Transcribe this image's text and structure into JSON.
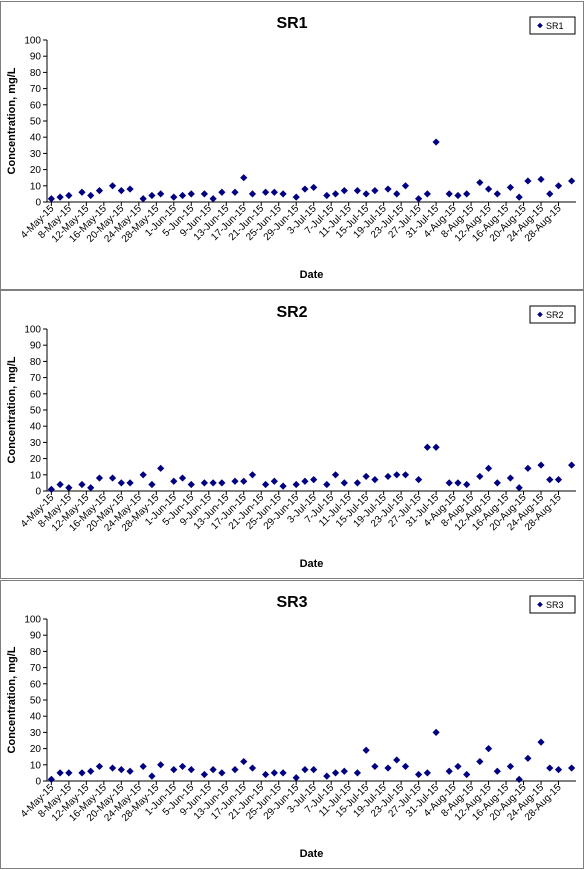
{
  "chart_data": [
    {
      "type": "scatter",
      "title": "SR1",
      "xlabel": "Date",
      "ylabel": "Concentration, mg/L",
      "ylim": [
        0,
        100
      ],
      "yticks": [
        0,
        10,
        20,
        30,
        40,
        50,
        60,
        70,
        80,
        90,
        100
      ],
      "xtick_labels": [
        "4-May-15",
        "8-May-15",
        "12-May-15",
        "16-May-15",
        "20-May-15",
        "24-May-15",
        "28-May-15",
        "1-Jun-15",
        "5-Jun-15",
        "9-Jun-15",
        "13-Jun-15",
        "17-Jun-15",
        "21-Jun-15",
        "25-Jun-15",
        "29-Jun-15",
        "3-Jul-15",
        "7-Jul-15",
        "11-Jul-15",
        "15-Jul-15",
        "19-Jul-15",
        "23-Jul-15",
        "27-Jul-15",
        "31-Jul-15",
        "4-Aug-15",
        "8-Aug-15",
        "12-Aug-15",
        "16-Aug-15",
        "20-Aug-15",
        "24-Aug-15",
        "28-Aug-15"
      ],
      "grid": false,
      "legend_position": "top-right",
      "series": [
        {
          "name": "SR1",
          "color": "#000080",
          "marker": "diamond",
          "points": [
            [
              "2015-05-04",
              2
            ],
            [
              "2015-05-06",
              3
            ],
            [
              "2015-05-08",
              4
            ],
            [
              "2015-05-11",
              6
            ],
            [
              "2015-05-13",
              4
            ],
            [
              "2015-05-15",
              7
            ],
            [
              "2015-05-18",
              10
            ],
            [
              "2015-05-20",
              7
            ],
            [
              "2015-05-22",
              8
            ],
            [
              "2015-05-25",
              2
            ],
            [
              "2015-05-27",
              4
            ],
            [
              "2015-05-29",
              5
            ],
            [
              "2015-06-01",
              3
            ],
            [
              "2015-06-03",
              4
            ],
            [
              "2015-06-05",
              5
            ],
            [
              "2015-06-08",
              5
            ],
            [
              "2015-06-10",
              2
            ],
            [
              "2015-06-12",
              6
            ],
            [
              "2015-06-15",
              6
            ],
            [
              "2015-06-17",
              15
            ],
            [
              "2015-06-19",
              5
            ],
            [
              "2015-06-22",
              6
            ],
            [
              "2015-06-24",
              6
            ],
            [
              "2015-06-26",
              5
            ],
            [
              "2015-06-29",
              3
            ],
            [
              "2015-07-01",
              8
            ],
            [
              "2015-07-03",
              9
            ],
            [
              "2015-07-06",
              4
            ],
            [
              "2015-07-08",
              5
            ],
            [
              "2015-07-10",
              7
            ],
            [
              "2015-07-13",
              7
            ],
            [
              "2015-07-15",
              5
            ],
            [
              "2015-07-17",
              7
            ],
            [
              "2015-07-20",
              8
            ],
            [
              "2015-07-22",
              5
            ],
            [
              "2015-07-24",
              10
            ],
            [
              "2015-07-27",
              2
            ],
            [
              "2015-07-29",
              5
            ],
            [
              "2015-07-31",
              37
            ],
            [
              "2015-08-03",
              5
            ],
            [
              "2015-08-05",
              4
            ],
            [
              "2015-08-07",
              5
            ],
            [
              "2015-08-10",
              12
            ],
            [
              "2015-08-12",
              8
            ],
            [
              "2015-08-14",
              5
            ],
            [
              "2015-08-17",
              9
            ],
            [
              "2015-08-19",
              3
            ],
            [
              "2015-08-21",
              13
            ],
            [
              "2015-08-24",
              14
            ],
            [
              "2015-08-26",
              5
            ],
            [
              "2015-08-28",
              10
            ],
            [
              "2015-08-31",
              13
            ]
          ]
        }
      ]
    },
    {
      "type": "scatter",
      "title": "SR2",
      "xlabel": "Date",
      "ylabel": "Concentration, mg/L",
      "ylim": [
        0,
        100
      ],
      "yticks": [
        0,
        10,
        20,
        30,
        40,
        50,
        60,
        70,
        80,
        90,
        100
      ],
      "xtick_labels": [
        "4-May-15",
        "8-May-15",
        "12-May-15",
        "16-May-15",
        "20-May-15",
        "24-May-15",
        "28-May-15",
        "1-Jun-15",
        "5-Jun-15",
        "9-Jun-15",
        "13-Jun-15",
        "17-Jun-15",
        "21-Jun-15",
        "25-Jun-15",
        "29-Jun-15",
        "3-Jul-15",
        "7-Jul-15",
        "11-Jul-15",
        "15-Jul-15",
        "19-Jul-15",
        "23-Jul-15",
        "27-Jul-15",
        "31-Jul-15",
        "4-Aug-15",
        "8-Aug-15",
        "12-Aug-15",
        "16-Aug-15",
        "20-Aug-15",
        "24-Aug-15",
        "28-Aug-15"
      ],
      "grid": false,
      "legend_position": "top-right",
      "series": [
        {
          "name": "SR2",
          "color": "#000080",
          "marker": "diamond",
          "points": [
            [
              "2015-05-04",
              1
            ],
            [
              "2015-05-06",
              4
            ],
            [
              "2015-05-08",
              2
            ],
            [
              "2015-05-11",
              4
            ],
            [
              "2015-05-13",
              2
            ],
            [
              "2015-05-15",
              8
            ],
            [
              "2015-05-18",
              8
            ],
            [
              "2015-05-20",
              5
            ],
            [
              "2015-05-22",
              5
            ],
            [
              "2015-05-25",
              10
            ],
            [
              "2015-05-27",
              4
            ],
            [
              "2015-05-29",
              14
            ],
            [
              "2015-06-01",
              6
            ],
            [
              "2015-06-03",
              8
            ],
            [
              "2015-06-05",
              4
            ],
            [
              "2015-06-08",
              5
            ],
            [
              "2015-06-10",
              5
            ],
            [
              "2015-06-12",
              5
            ],
            [
              "2015-06-15",
              6
            ],
            [
              "2015-06-17",
              6
            ],
            [
              "2015-06-19",
              10
            ],
            [
              "2015-06-22",
              4
            ],
            [
              "2015-06-24",
              6
            ],
            [
              "2015-06-26",
              3
            ],
            [
              "2015-06-29",
              4
            ],
            [
              "2015-07-01",
              6
            ],
            [
              "2015-07-03",
              7
            ],
            [
              "2015-07-06",
              4
            ],
            [
              "2015-07-08",
              10
            ],
            [
              "2015-07-10",
              5
            ],
            [
              "2015-07-13",
              5
            ],
            [
              "2015-07-15",
              9
            ],
            [
              "2015-07-17",
              7
            ],
            [
              "2015-07-20",
              9
            ],
            [
              "2015-07-22",
              10
            ],
            [
              "2015-07-24",
              10
            ],
            [
              "2015-07-27",
              7
            ],
            [
              "2015-07-29",
              27
            ],
            [
              "2015-07-31",
              27
            ],
            [
              "2015-08-03",
              5
            ],
            [
              "2015-08-05",
              5
            ],
            [
              "2015-08-07",
              4
            ],
            [
              "2015-08-10",
              9
            ],
            [
              "2015-08-12",
              14
            ],
            [
              "2015-08-14",
              5
            ],
            [
              "2015-08-17",
              8
            ],
            [
              "2015-08-19",
              2
            ],
            [
              "2015-08-21",
              14
            ],
            [
              "2015-08-24",
              16
            ],
            [
              "2015-08-26",
              7
            ],
            [
              "2015-08-28",
              7
            ],
            [
              "2015-08-31",
              16
            ]
          ]
        }
      ]
    },
    {
      "type": "scatter",
      "title": "SR3",
      "xlabel": "Date",
      "ylabel": "Concentration, mg/L",
      "ylim": [
        0,
        100
      ],
      "yticks": [
        0,
        10,
        20,
        30,
        40,
        50,
        60,
        70,
        80,
        90,
        100
      ],
      "xtick_labels": [
        "4-May-15",
        "8-May-15",
        "12-May-15",
        "16-May-15",
        "20-May-15",
        "24-May-15",
        "28-May-15",
        "1-Jun-15",
        "5-Jun-15",
        "9-Jun-15",
        "13-Jun-15",
        "17-Jun-15",
        "21-Jun-15",
        "25-Jun-15",
        "29-Jun-15",
        "3-Jul-15",
        "7-Jul-15",
        "11-Jul-15",
        "15-Jul-15",
        "19-Jul-15",
        "23-Jul-15",
        "27-Jul-15",
        "31-Jul-15",
        "4-Aug-15",
        "8-Aug-15",
        "12-Aug-15",
        "16-Aug-15",
        "20-Aug-15",
        "24-Aug-15",
        "28-Aug-15"
      ],
      "grid": false,
      "legend_position": "top-right",
      "series": [
        {
          "name": "SR3",
          "color": "#000080",
          "marker": "diamond",
          "points": [
            [
              "2015-05-04",
              1
            ],
            [
              "2015-05-06",
              5
            ],
            [
              "2015-05-08",
              5
            ],
            [
              "2015-05-11",
              5
            ],
            [
              "2015-05-13",
              6
            ],
            [
              "2015-05-15",
              9
            ],
            [
              "2015-05-18",
              8
            ],
            [
              "2015-05-20",
              7
            ],
            [
              "2015-05-22",
              6
            ],
            [
              "2015-05-25",
              9
            ],
            [
              "2015-05-27",
              3
            ],
            [
              "2015-05-29",
              10
            ],
            [
              "2015-06-01",
              7
            ],
            [
              "2015-06-03",
              9
            ],
            [
              "2015-06-05",
              7
            ],
            [
              "2015-06-08",
              4
            ],
            [
              "2015-06-10",
              7
            ],
            [
              "2015-06-12",
              5
            ],
            [
              "2015-06-15",
              7
            ],
            [
              "2015-06-17",
              12
            ],
            [
              "2015-06-19",
              8
            ],
            [
              "2015-06-22",
              4
            ],
            [
              "2015-06-24",
              5
            ],
            [
              "2015-06-26",
              5
            ],
            [
              "2015-06-29",
              2
            ],
            [
              "2015-07-01",
              7
            ],
            [
              "2015-07-03",
              7
            ],
            [
              "2015-07-06",
              3
            ],
            [
              "2015-07-08",
              5
            ],
            [
              "2015-07-10",
              6
            ],
            [
              "2015-07-13",
              5
            ],
            [
              "2015-07-15",
              19
            ],
            [
              "2015-07-17",
              9
            ],
            [
              "2015-07-20",
              8
            ],
            [
              "2015-07-22",
              13
            ],
            [
              "2015-07-24",
              9
            ],
            [
              "2015-07-27",
              4
            ],
            [
              "2015-07-29",
              5
            ],
            [
              "2015-07-31",
              30
            ],
            [
              "2015-08-03",
              6
            ],
            [
              "2015-08-05",
              9
            ],
            [
              "2015-08-07",
              4
            ],
            [
              "2015-08-10",
              12
            ],
            [
              "2015-08-12",
              20
            ],
            [
              "2015-08-14",
              6
            ],
            [
              "2015-08-17",
              9
            ],
            [
              "2015-08-19",
              1
            ],
            [
              "2015-08-21",
              14
            ],
            [
              "2015-08-24",
              24
            ],
            [
              "2015-08-26",
              8
            ],
            [
              "2015-08-28",
              7
            ],
            [
              "2015-08-31",
              8
            ]
          ]
        }
      ]
    }
  ]
}
